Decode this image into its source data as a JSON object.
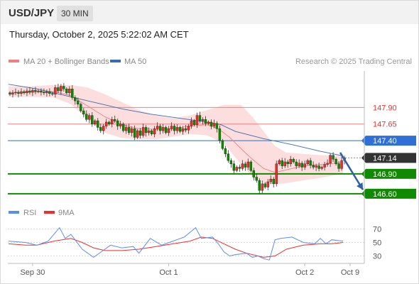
{
  "header": {
    "symbol": "USD/JPY",
    "interval": "30 MIN",
    "timestamp": "Thursday, October 2, 2025 5:22:02 AM CET"
  },
  "copyright": "Research © 2025 Trading Central",
  "chart_data": [
    {
      "type": "candlestick",
      "legend": [
        {
          "name": "MA 20 + Bollinger Bands",
          "color": "#f08080"
        },
        {
          "name": "MA 50",
          "color": "#3a6bb5"
        }
      ],
      "ylim": [
        146.47,
        148.45
      ],
      "xlim": [
        0,
        126
      ],
      "x_ticks": [
        {
          "label": "Sep 30",
          "x": 12
        },
        {
          "label": "Oct 1",
          "x": 60
        },
        {
          "label": "Oct 2",
          "x": 108
        },
        {
          "label": "Oct 9",
          "x": 124
        }
      ],
      "x_ticks_prefix_note": "",
      "levels": [
        {
          "value": 147.9,
          "label": "147.90",
          "style": "resistance"
        },
        {
          "value": 147.65,
          "label": "147.65",
          "style": "resistance"
        },
        {
          "value": 147.4,
          "label": "147.40",
          "style": "pivot"
        },
        {
          "value": 147.14,
          "label": "147.14",
          "style": "last"
        },
        {
          "value": 146.9,
          "label": "146.90",
          "style": "support"
        },
        {
          "value": 146.6,
          "label": "146.60",
          "style": "support"
        }
      ],
      "forecast_arrow": {
        "from": {
          "x": 117,
          "y": 147.22
        },
        "to": {
          "x": 125,
          "y": 146.66
        }
      },
      "close": [
        148.1,
        148.12,
        148.13,
        148.11,
        148.14,
        148.12,
        148.15,
        148.13,
        148.16,
        148.14,
        148.15,
        148.13,
        148.12,
        148.14,
        148.11,
        148.1,
        148.2,
        148.15,
        148.22,
        148.18,
        148.12,
        148.18,
        148.05,
        148.0,
        147.95,
        147.85,
        147.8,
        147.72,
        147.78,
        147.65,
        147.7,
        147.6,
        147.55,
        147.62,
        147.68,
        147.65,
        147.72,
        147.7,
        147.62,
        147.65,
        147.55,
        147.6,
        147.52,
        147.58,
        147.45,
        147.55,
        147.48,
        147.6,
        147.52,
        147.55,
        147.5,
        147.58,
        147.62,
        147.55,
        147.6,
        147.52,
        147.58,
        147.62,
        147.55,
        147.6,
        147.54,
        147.58,
        147.56,
        147.62,
        147.7,
        147.64,
        147.78,
        147.7,
        147.72,
        147.66,
        147.68,
        147.62,
        147.66,
        147.58,
        147.4,
        147.28,
        147.2,
        147.1,
        147.05,
        146.95,
        147.0,
        146.98,
        147.05,
        147.0,
        147.08,
        146.95,
        146.85,
        146.8,
        146.65,
        146.75,
        146.7,
        146.78,
        146.82,
        146.75,
        147.05,
        147.1,
        147.02,
        147.08,
        147.05,
        147.12,
        147.08,
        147.02,
        147.06,
        147.0,
        147.05,
        147.1,
        147.03,
        147.0,
        147.02,
        146.98,
        147.0,
        147.04,
        147.06,
        147.18,
        147.12,
        147.05,
        146.98,
        147.1,
        147.14
      ],
      "ma50": [
        [
          0,
          148.25
        ],
        [
          10,
          148.18
        ],
        [
          20,
          148.08
        ],
        [
          30,
          147.98
        ],
        [
          40,
          147.88
        ],
        [
          50,
          147.8
        ],
        [
          60,
          147.74
        ],
        [
          70,
          147.68
        ],
        [
          75,
          147.64
        ],
        [
          80,
          147.54
        ],
        [
          90,
          147.43
        ],
        [
          100,
          147.34
        ],
        [
          110,
          147.24
        ],
        [
          118,
          147.17
        ]
      ],
      "ma20": [
        [
          0,
          148.12
        ],
        [
          8,
          148.13
        ],
        [
          16,
          148.14
        ],
        [
          22,
          148.08
        ],
        [
          28,
          147.92
        ],
        [
          34,
          147.76
        ],
        [
          40,
          147.64
        ],
        [
          46,
          147.58
        ],
        [
          52,
          147.57
        ],
        [
          58,
          147.58
        ],
        [
          64,
          147.62
        ],
        [
          70,
          147.64
        ],
        [
          74,
          147.58
        ],
        [
          78,
          147.45
        ],
        [
          82,
          147.28
        ],
        [
          86,
          147.12
        ],
        [
          90,
          146.98
        ],
        [
          94,
          146.92
        ],
        [
          98,
          146.96
        ],
        [
          104,
          147.02
        ],
        [
          110,
          147.04
        ],
        [
          118,
          147.07
        ]
      ],
      "bb_upper": [
        [
          0,
          148.22
        ],
        [
          8,
          148.22
        ],
        [
          16,
          148.24
        ],
        [
          22,
          148.24
        ],
        [
          28,
          148.2
        ],
        [
          34,
          148.1
        ],
        [
          40,
          147.98
        ],
        [
          46,
          147.86
        ],
        [
          52,
          147.78
        ],
        [
          58,
          147.74
        ],
        [
          64,
          147.78
        ],
        [
          70,
          147.86
        ],
        [
          76,
          147.94
        ],
        [
          82,
          147.94
        ],
        [
          86,
          147.76
        ],
        [
          90,
          147.54
        ],
        [
          94,
          147.32
        ],
        [
          98,
          147.22
        ],
        [
          104,
          147.2
        ],
        [
          110,
          147.18
        ],
        [
          118,
          147.18
        ]
      ],
      "bb_lower": [
        [
          0,
          148.06
        ],
        [
          8,
          148.06
        ],
        [
          16,
          148.05
        ],
        [
          22,
          147.95
        ],
        [
          28,
          147.72
        ],
        [
          34,
          147.52
        ],
        [
          40,
          147.44
        ],
        [
          46,
          147.42
        ],
        [
          52,
          147.42
        ],
        [
          58,
          147.46
        ],
        [
          64,
          147.5
        ],
        [
          70,
          147.48
        ],
        [
          76,
          147.36
        ],
        [
          82,
          147.04
        ],
        [
          86,
          146.86
        ],
        [
          90,
          146.76
        ],
        [
          94,
          146.74
        ],
        [
          98,
          146.76
        ],
        [
          104,
          146.8
        ],
        [
          110,
          146.84
        ],
        [
          118,
          146.9
        ]
      ]
    },
    {
      "type": "line",
      "legend": [
        {
          "name": "RSI",
          "color": "#5b8def"
        },
        {
          "name": "9MA",
          "color": "#e8312f"
        }
      ],
      "ylim": [
        20,
        80
      ],
      "y_ticks": [
        30,
        50,
        70
      ],
      "series": [
        {
          "name": "RSI",
          "points": [
            [
              0,
              52
            ],
            [
              6,
              50
            ],
            [
              10,
              46
            ],
            [
              14,
              52
            ],
            [
              18,
              72
            ],
            [
              20,
              56
            ],
            [
              22,
              62
            ],
            [
              26,
              40
            ],
            [
              30,
              28
            ],
            [
              34,
              40
            ],
            [
              36,
              46
            ],
            [
              40,
              42
            ],
            [
              44,
              44
            ],
            [
              46,
              34
            ],
            [
              50,
              56
            ],
            [
              54,
              46
            ],
            [
              58,
              52
            ],
            [
              62,
              58
            ],
            [
              66,
              72
            ],
            [
              68,
              56
            ],
            [
              72,
              58
            ],
            [
              74,
              48
            ],
            [
              76,
              36
            ],
            [
              78,
              30
            ],
            [
              80,
              32
            ],
            [
              84,
              34
            ],
            [
              86,
              28
            ],
            [
              88,
              30
            ],
            [
              90,
              26
            ],
            [
              92,
              24
            ],
            [
              94,
              54
            ],
            [
              96,
              56
            ],
            [
              100,
              58
            ],
            [
              104,
              50
            ],
            [
              108,
              48
            ],
            [
              110,
              56
            ],
            [
              112,
              48
            ],
            [
              114,
              54
            ],
            [
              118,
              52
            ]
          ]
        },
        {
          "name": "9MA",
          "points": [
            [
              0,
              48
            ],
            [
              6,
              46
            ],
            [
              10,
              46
            ],
            [
              16,
              52
            ],
            [
              22,
              56
            ],
            [
              26,
              50
            ],
            [
              30,
              42
            ],
            [
              34,
              38
            ],
            [
              40,
              38
            ],
            [
              46,
              40
            ],
            [
              52,
              44
            ],
            [
              58,
              48
            ],
            [
              64,
              52
            ],
            [
              68,
              58
            ],
            [
              72,
              56
            ],
            [
              76,
              48
            ],
            [
              80,
              40
            ],
            [
              84,
              34
            ],
            [
              90,
              28
            ],
            [
              94,
              30
            ],
            [
              98,
              40
            ],
            [
              104,
              46
            ],
            [
              110,
              48
            ],
            [
              114,
              48
            ],
            [
              118,
              50
            ]
          ]
        }
      ]
    }
  ]
}
